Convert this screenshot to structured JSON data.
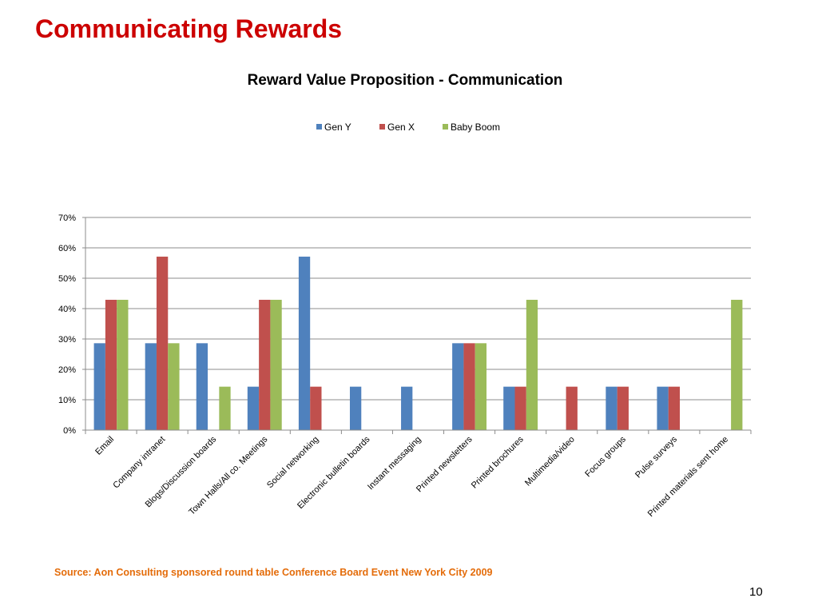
{
  "slide": {
    "title": "Communicating Rewards",
    "source": "Source: Aon Consulting sponsored round table Conference Board Event New York City 2009",
    "page_number": "10"
  },
  "chart_data": {
    "type": "bar",
    "title": "Reward Value Proposition - Communication",
    "xlabel": "",
    "ylabel": "",
    "ylim": [
      0,
      0.7
    ],
    "yticks": [
      0,
      0.1,
      0.2,
      0.3,
      0.4,
      0.5,
      0.6,
      0.7
    ],
    "ytick_labels": [
      "0%",
      "10%",
      "20%",
      "30%",
      "40%",
      "50%",
      "60%",
      "70%"
    ],
    "grid": true,
    "legend_position": "top-center",
    "categories": [
      "Email",
      "Company intranet",
      "Blogs/Discussion boards",
      "Town Halls/All co. Meetings",
      "Social networking",
      "Electronic bulletin boards",
      "Instant messaging",
      "Printed newsletters",
      "Printed brochures",
      "Multimedia/video",
      "Focus groups",
      "Pulse surveys",
      "Printed materials sent home"
    ],
    "series": [
      {
        "name": "Gen Y",
        "color": "#4f81bd",
        "values": [
          0.286,
          0.286,
          0.286,
          0.143,
          0.571,
          0.143,
          0.143,
          0.286,
          0.143,
          0,
          0.143,
          0.143,
          0
        ]
      },
      {
        "name": "Gen X",
        "color": "#c0504d",
        "values": [
          0.429,
          0.571,
          0,
          0.429,
          0.143,
          0,
          0,
          0.286,
          0.143,
          0.143,
          0.143,
          0.143,
          0
        ]
      },
      {
        "name": "Baby Boom",
        "color": "#9bbb59",
        "values": [
          0.429,
          0.286,
          0.143,
          0.429,
          0,
          0,
          0,
          0.286,
          0.429,
          0,
          0,
          0,
          0.429
        ]
      }
    ]
  }
}
